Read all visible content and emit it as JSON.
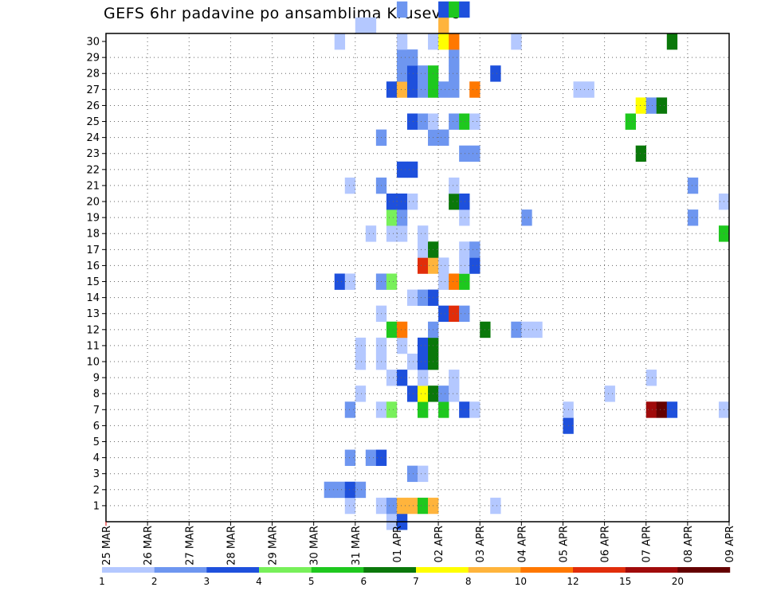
{
  "chart_data": {
    "type": "heatmap",
    "title": "GEFS 6hr padavine po ansamblima Krusevac",
    "x_tick_labels": [
      "25 MAR",
      "26 MAR",
      "27 MAR",
      "28 MAR",
      "29 MAR",
      "30 MAR",
      "31 MAR",
      "01 APR",
      "02 APR",
      "03 APR",
      "04 APR",
      "05 APR",
      "06 APR",
      "07 APR",
      "08 APR",
      "09 APR"
    ],
    "y_tick_labels": [
      "1",
      "2",
      "3",
      "4",
      "5",
      "6",
      "7",
      "8",
      "9",
      "10",
      "11",
      "12",
      "13",
      "14",
      "15",
      "16",
      "17",
      "18",
      "19",
      "20",
      "21",
      "22",
      "23",
      "24",
      "25",
      "26",
      "27",
      "28",
      "29",
      "30"
    ],
    "x_range_days": [
      0,
      15
    ],
    "y_range": [
      0,
      30
    ],
    "grid": true,
    "colorbar": {
      "position": "bottom",
      "levels": [
        "1",
        "2",
        "3",
        "4",
        "5",
        "6",
        "7",
        "8",
        "10",
        "12",
        "15",
        "20"
      ],
      "colors": [
        "#b4c8ff",
        "#6e96f0",
        "#1e50dc",
        "#78f05a",
        "#1ec81e",
        "#0a780a",
        "#ffff00",
        "#ffb43c",
        "#ff7800",
        "#e12d0a",
        "#a00a0a",
        "#640000"
      ]
    },
    "cells": [
      {
        "m": 0,
        "t": 27,
        "v": 1
      },
      {
        "m": 0,
        "t": 28,
        "v": 3
      },
      {
        "m": 1,
        "t": 23,
        "v": 1
      },
      {
        "m": 1,
        "t": 26,
        "v": 1
      },
      {
        "m": 1,
        "t": 27,
        "v": 2
      },
      {
        "m": 1,
        "t": 28,
        "v": 8
      },
      {
        "m": 1,
        "t": 29,
        "v": 8
      },
      {
        "m": 1,
        "t": 30,
        "v": 5
      },
      {
        "m": 1,
        "t": 31,
        "v": 8
      },
      {
        "m": 1,
        "t": 37,
        "v": 1
      },
      {
        "m": 2,
        "t": 21,
        "v": 2
      },
      {
        "m": 2,
        "t": 22,
        "v": 2
      },
      {
        "m": 2,
        "t": 23,
        "v": 3
      },
      {
        "m": 2,
        "t": 24,
        "v": 2
      },
      {
        "m": 3,
        "t": 29,
        "v": 2
      },
      {
        "m": 3,
        "t": 30,
        "v": 1
      },
      {
        "m": 4,
        "t": 23,
        "v": 2
      },
      {
        "m": 4,
        "t": 25,
        "v": 2
      },
      {
        "m": 4,
        "t": 26,
        "v": 3
      },
      {
        "m": 6,
        "t": 44,
        "v": 3
      },
      {
        "m": 7,
        "t": 23,
        "v": 2
      },
      {
        "m": 7,
        "t": 26,
        "v": 1
      },
      {
        "m": 7,
        "t": 27,
        "v": 4
      },
      {
        "m": 7,
        "t": 30,
        "v": 5
      },
      {
        "m": 7,
        "t": 32,
        "v": 5
      },
      {
        "m": 7,
        "t": 34,
        "v": 3
      },
      {
        "m": 7,
        "t": 35,
        "v": 1
      },
      {
        "m": 7,
        "t": 44,
        "v": 1
      },
      {
        "m": 7,
        "t": 52,
        "v": 15
      },
      {
        "m": 7,
        "t": 53,
        "v": 20
      },
      {
        "m": 7,
        "t": 54,
        "v": 3
      },
      {
        "m": 7,
        "t": 59,
        "v": 1
      },
      {
        "m": 8,
        "t": 24,
        "v": 1
      },
      {
        "m": 8,
        "t": 29,
        "v": 3
      },
      {
        "m": 8,
        "t": 30,
        "v": 7
      },
      {
        "m": 8,
        "t": 31,
        "v": 6
      },
      {
        "m": 8,
        "t": 32,
        "v": 2
      },
      {
        "m": 8,
        "t": 33,
        "v": 1
      },
      {
        "m": 8,
        "t": 48,
        "v": 1
      },
      {
        "m": 9,
        "t": 27,
        "v": 1
      },
      {
        "m": 9,
        "t": 28,
        "v": 3
      },
      {
        "m": 9,
        "t": 30,
        "v": 1
      },
      {
        "m": 9,
        "t": 33,
        "v": 1
      },
      {
        "m": 9,
        "t": 52,
        "v": 1
      },
      {
        "m": 10,
        "t": 24,
        "v": 1
      },
      {
        "m": 10,
        "t": 26,
        "v": 1
      },
      {
        "m": 10,
        "t": 29,
        "v": 1
      },
      {
        "m": 10,
        "t": 30,
        "v": 3
      },
      {
        "m": 10,
        "t": 31,
        "v": 6
      },
      {
        "m": 11,
        "t": 24,
        "v": 1
      },
      {
        "m": 11,
        "t": 26,
        "v": 1
      },
      {
        "m": 11,
        "t": 28,
        "v": 1
      },
      {
        "m": 11,
        "t": 30,
        "v": 3
      },
      {
        "m": 11,
        "t": 31,
        "v": 6
      },
      {
        "m": 12,
        "t": 27,
        "v": 5
      },
      {
        "m": 12,
        "t": 28,
        "v": 10
      },
      {
        "m": 12,
        "t": 31,
        "v": 2
      },
      {
        "m": 12,
        "t": 36,
        "v": 6
      },
      {
        "m": 12,
        "t": 39,
        "v": 2
      },
      {
        "m": 12,
        "t": 40,
        "v": 1
      },
      {
        "m": 12,
        "t": 41,
        "v": 1
      },
      {
        "m": 13,
        "t": 26,
        "v": 1
      },
      {
        "m": 13,
        "t": 32,
        "v": 3
      },
      {
        "m": 13,
        "t": 33,
        "v": 12
      },
      {
        "m": 13,
        "t": 34,
        "v": 2
      },
      {
        "m": 14,
        "t": 29,
        "v": 1
      },
      {
        "m": 14,
        "t": 30,
        "v": 2
      },
      {
        "m": 14,
        "t": 31,
        "v": 3
      },
      {
        "m": 15,
        "t": 22,
        "v": 3
      },
      {
        "m": 15,
        "t": 23,
        "v": 1
      },
      {
        "m": 15,
        "t": 26,
        "v": 2
      },
      {
        "m": 15,
        "t": 27,
        "v": 4
      },
      {
        "m": 15,
        "t": 32,
        "v": 1
      },
      {
        "m": 15,
        "t": 33,
        "v": 10
      },
      {
        "m": 15,
        "t": 34,
        "v": 5
      },
      {
        "m": 16,
        "t": 30,
        "v": 12
      },
      {
        "m": 16,
        "t": 31,
        "v": 8
      },
      {
        "m": 16,
        "t": 32,
        "v": 1
      },
      {
        "m": 16,
        "t": 34,
        "v": 1
      },
      {
        "m": 16,
        "t": 35,
        "v": 3
      },
      {
        "m": 17,
        "t": 30,
        "v": 1
      },
      {
        "m": 17,
        "t": 31,
        "v": 6
      },
      {
        "m": 17,
        "t": 34,
        "v": 1
      },
      {
        "m": 17,
        "t": 35,
        "v": 2
      },
      {
        "m": 18,
        "t": 25,
        "v": 1
      },
      {
        "m": 18,
        "t": 27,
        "v": 1
      },
      {
        "m": 18,
        "t": 28,
        "v": 1
      },
      {
        "m": 18,
        "t": 30,
        "v": 1
      },
      {
        "m": 18,
        "t": 59,
        "v": 5
      },
      {
        "m": 19,
        "t": 27,
        "v": 4
      },
      {
        "m": 19,
        "t": 28,
        "v": 2
      },
      {
        "m": 19,
        "t": 34,
        "v": 1
      },
      {
        "m": 19,
        "t": 40,
        "v": 2
      },
      {
        "m": 19,
        "t": 56,
        "v": 2
      },
      {
        "m": 20,
        "t": 27,
        "v": 3
      },
      {
        "m": 20,
        "t": 28,
        "v": 3
      },
      {
        "m": 20,
        "t": 29,
        "v": 1
      },
      {
        "m": 20,
        "t": 33,
        "v": 6
      },
      {
        "m": 20,
        "t": 34,
        "v": 3
      },
      {
        "m": 20,
        "t": 59,
        "v": 1
      },
      {
        "m": 21,
        "t": 23,
        "v": 1
      },
      {
        "m": 21,
        "t": 26,
        "v": 2
      },
      {
        "m": 21,
        "t": 33,
        "v": 1
      },
      {
        "m": 21,
        "t": 56,
        "v": 2
      },
      {
        "m": 22,
        "t": 28,
        "v": 3
      },
      {
        "m": 22,
        "t": 29,
        "v": 3
      },
      {
        "m": 23,
        "t": 34,
        "v": 2
      },
      {
        "m": 23,
        "t": 35,
        "v": 2
      },
      {
        "m": 23,
        "t": 51,
        "v": 6
      },
      {
        "m": 24,
        "t": 26,
        "v": 2
      },
      {
        "m": 24,
        "t": 31,
        "v": 2
      },
      {
        "m": 24,
        "t": 32,
        "v": 2
      },
      {
        "m": 25,
        "t": 29,
        "v": 3
      },
      {
        "m": 25,
        "t": 30,
        "v": 2
      },
      {
        "m": 25,
        "t": 31,
        "v": 1
      },
      {
        "m": 25,
        "t": 33,
        "v": 2
      },
      {
        "m": 25,
        "t": 34,
        "v": 5
      },
      {
        "m": 25,
        "t": 35,
        "v": 1
      },
      {
        "m": 25,
        "t": 50,
        "v": 5
      },
      {
        "m": 26,
        "t": 51,
        "v": 7
      },
      {
        "m": 26,
        "t": 52,
        "v": 2
      },
      {
        "m": 26,
        "t": 53,
        "v": 6
      },
      {
        "m": 27,
        "t": 27,
        "v": 3
      },
      {
        "m": 27,
        "t": 28,
        "v": 8
      },
      {
        "m": 27,
        "t": 29,
        "v": 3
      },
      {
        "m": 27,
        "t": 30,
        "v": 2
      },
      {
        "m": 27,
        "t": 31,
        "v": 5
      },
      {
        "m": 27,
        "t": 32,
        "v": 2
      },
      {
        "m": 27,
        "t": 33,
        "v": 2
      },
      {
        "m": 27,
        "t": 35,
        "v": 10
      },
      {
        "m": 27,
        "t": 45,
        "v": 1
      },
      {
        "m": 27,
        "t": 46,
        "v": 1
      },
      {
        "m": 28,
        "t": 28,
        "v": 2
      },
      {
        "m": 28,
        "t": 29,
        "v": 3
      },
      {
        "m": 28,
        "t": 30,
        "v": 2
      },
      {
        "m": 28,
        "t": 31,
        "v": 5
      },
      {
        "m": 28,
        "t": 33,
        "v": 2
      },
      {
        "m": 28,
        "t": 37,
        "v": 3
      },
      {
        "m": 29,
        "t": 28,
        "v": 2
      },
      {
        "m": 29,
        "t": 29,
        "v": 2
      },
      {
        "m": 29,
        "t": 33,
        "v": 2
      },
      {
        "m": 30,
        "t": 22,
        "v": 1
      },
      {
        "m": 30,
        "t": 28,
        "v": 1
      },
      {
        "m": 30,
        "t": 31,
        "v": 1
      },
      {
        "m": 30,
        "t": 32,
        "v": 7
      },
      {
        "m": 30,
        "t": 33,
        "v": 10
      },
      {
        "m": 30,
        "t": 39,
        "v": 1
      },
      {
        "m": 30,
        "t": 54,
        "v": 6
      },
      {
        "m": 31,
        "t": 24,
        "v": 1
      },
      {
        "m": 31,
        "t": 25,
        "v": 1
      },
      {
        "m": 31,
        "t": 32,
        "v": 8
      },
      {
        "m": 32,
        "t": 28,
        "v": 2
      },
      {
        "m": 32,
        "t": 32,
        "v": 3
      },
      {
        "m": 32,
        "t": 33,
        "v": 5
      },
      {
        "m": 32,
        "t": 34,
        "v": 3
      }
    ]
  }
}
